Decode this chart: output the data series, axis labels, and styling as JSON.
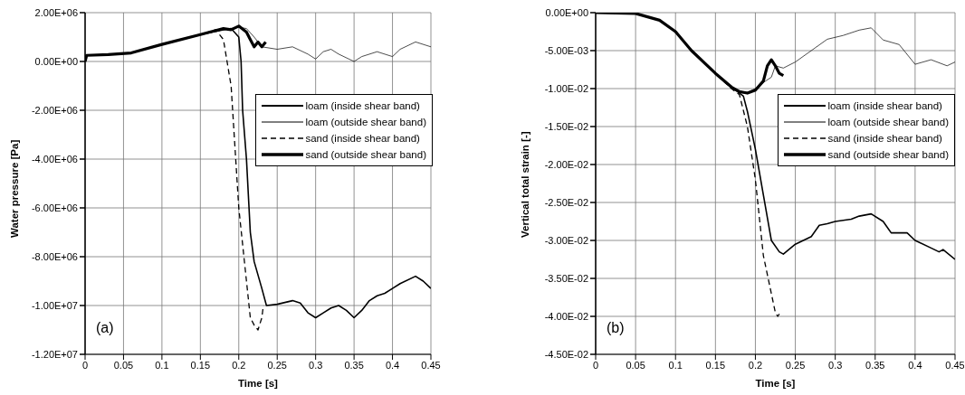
{
  "chart_data": [
    {
      "type": "line",
      "xlabel": "Time  [s]",
      "ylabel": "Water pressure  [Pa]",
      "annotations": [
        "(a)"
      ],
      "xlim": [
        0,
        0.45
      ],
      "xticks": [
        0,
        0.05,
        0.1,
        0.15,
        0.2,
        0.25,
        0.3,
        0.35,
        0.4,
        0.45
      ],
      "ylim": [
        -12000000,
        2000000
      ],
      "yticks": [
        {
          "value": -12000000,
          "label": "-1.20E+07"
        },
        {
          "value": -10000000,
          "label": "-1.00E+07"
        },
        {
          "value": -8000000,
          "label": "-8.00E+06"
        },
        {
          "value": -6000000,
          "label": "-6.00E+06"
        },
        {
          "value": -4000000,
          "label": "-4.00E+06"
        },
        {
          "value": -2000000,
          "label": "-2.00E+06"
        },
        {
          "value": 0,
          "label": "0.00E+00"
        },
        {
          "value": 2000000,
          "label": "2.00E+06"
        }
      ],
      "grid": true,
      "legend": "right",
      "marker": "none",
      "series": [
        {
          "name": "loam (inside shear band)",
          "color": "#000000",
          "line_style": "solid",
          "x": [
            0,
            0.002,
            0.03,
            0.06,
            0.1,
            0.15,
            0.18,
            0.19,
            0.2,
            0.203,
            0.205,
            0.21,
            0.215,
            0.22,
            0.23,
            0.236,
            0.25,
            0.27,
            0.28,
            0.29,
            0.3,
            0.31,
            0.32,
            0.33,
            0.34,
            0.35,
            0.36,
            0.37,
            0.38,
            0.39,
            0.4,
            0.41,
            0.43,
            0.44,
            0.45
          ],
          "values": [
            0,
            250000,
            280000,
            350000,
            700000,
            1100000,
            1300000,
            1350000,
            1000000,
            0,
            -2000000,
            -4000000,
            -7000000,
            -8200000,
            -9300000,
            -10000000,
            -9950000,
            -9800000,
            -9900000,
            -10300000,
            -10500000,
            -10300000,
            -10100000,
            -10000000,
            -10200000,
            -10500000,
            -10200000,
            -9800000,
            -9600000,
            -9500000,
            -9300000,
            -9100000,
            -8800000,
            -9000000,
            -9300000
          ]
        },
        {
          "name": "loam (outside shear band)",
          "color": "#000000",
          "line_style": "solid",
          "x": [
            0,
            0.002,
            0.03,
            0.06,
            0.1,
            0.15,
            0.18,
            0.2,
            0.21,
            0.22,
            0.23,
            0.25,
            0.27,
            0.29,
            0.3,
            0.31,
            0.32,
            0.33,
            0.35,
            0.36,
            0.38,
            0.4,
            0.41,
            0.43,
            0.45
          ],
          "values": [
            0,
            250000,
            280000,
            350000,
            700000,
            1100000,
            1300000,
            1400000,
            1350000,
            1000000,
            600000,
            500000,
            600000,
            300000,
            100000,
            400000,
            500000,
            300000,
            0,
            200000,
            400000,
            200000,
            500000,
            800000,
            600000
          ]
        },
        {
          "name": "sand (inside shear band)",
          "color": "#000000",
          "line_style": "dashed",
          "x": [
            0,
            0.002,
            0.03,
            0.06,
            0.1,
            0.15,
            0.17,
            0.18,
            0.19,
            0.2,
            0.21,
            0.215,
            0.22,
            0.225,
            0.23,
            0.232
          ],
          "values": [
            0,
            250000,
            280000,
            350000,
            700000,
            1100000,
            1300000,
            900000,
            -1000000,
            -6000000,
            -9000000,
            -10500000,
            -10800000,
            -11000000,
            -10500000,
            -10000000
          ]
        },
        {
          "name": "sand (outside shear band)",
          "color": "#000000",
          "line_style": "solid",
          "x": [
            0,
            0.002,
            0.03,
            0.06,
            0.1,
            0.15,
            0.18,
            0.19,
            0.2,
            0.21,
            0.215,
            0.22,
            0.225,
            0.23,
            0.235
          ],
          "values": [
            0,
            250000,
            280000,
            350000,
            700000,
            1100000,
            1350000,
            1300000,
            1450000,
            1200000,
            900000,
            600000,
            800000,
            600000,
            800000
          ]
        }
      ]
    },
    {
      "type": "line",
      "xlabel": "Time  [s]",
      "ylabel": "Vertical total strain  [-]",
      "annotations": [
        "(b)"
      ],
      "xlim": [
        0,
        0.45
      ],
      "xticks": [
        0,
        0.05,
        0.1,
        0.15,
        0.2,
        0.25,
        0.3,
        0.35,
        0.4,
        0.45
      ],
      "ylim": [
        -0.045,
        0
      ],
      "yticks": [
        {
          "value": -0.045,
          "label": "-4.50E-02"
        },
        {
          "value": -0.04,
          "label": "-4.00E-02"
        },
        {
          "value": -0.035,
          "label": "-3.50E-02"
        },
        {
          "value": -0.03,
          "label": "-3.00E-02"
        },
        {
          "value": -0.025,
          "label": "-2.50E-02"
        },
        {
          "value": -0.02,
          "label": "-2.00E-02"
        },
        {
          "value": -0.015,
          "label": "-1.50E-02"
        },
        {
          "value": -0.01,
          "label": "-1.00E-02"
        },
        {
          "value": -0.005,
          "label": "-5.00E-03"
        },
        {
          "value": 0,
          "label": "0.00E+00"
        }
      ],
      "grid": true,
      "legend": "right",
      "marker": "none",
      "series": [
        {
          "name": "loam (inside shear band)",
          "color": "#000000",
          "line_style": "solid",
          "x": [
            0,
            0.05,
            0.08,
            0.1,
            0.12,
            0.15,
            0.17,
            0.175,
            0.185,
            0.19,
            0.2,
            0.21,
            0.22,
            0.23,
            0.235,
            0.25,
            0.27,
            0.28,
            0.29,
            0.3,
            0.32,
            0.33,
            0.345,
            0.36,
            0.37,
            0.39,
            0.4,
            0.42,
            0.43,
            0.435,
            0.45
          ],
          "values": [
            0,
            -0.0001,
            -0.001,
            -0.0025,
            -0.005,
            -0.008,
            -0.0098,
            -0.0102,
            -0.011,
            -0.013,
            -0.018,
            -0.024,
            -0.03,
            -0.0315,
            -0.0318,
            -0.0305,
            -0.0295,
            -0.028,
            -0.0278,
            -0.0275,
            -0.0272,
            -0.0268,
            -0.0265,
            -0.0275,
            -0.029,
            -0.029,
            -0.03,
            -0.031,
            -0.0315,
            -0.0312,
            -0.0325
          ]
        },
        {
          "name": "loam (outside shear band)",
          "color": "#000000",
          "line_style": "solid",
          "x": [
            0,
            0.05,
            0.08,
            0.1,
            0.12,
            0.15,
            0.17,
            0.18,
            0.19,
            0.2,
            0.21,
            0.22,
            0.225,
            0.235,
            0.25,
            0.27,
            0.29,
            0.31,
            0.33,
            0.345,
            0.36,
            0.38,
            0.4,
            0.42,
            0.44,
            0.45
          ],
          "values": [
            0,
            -0.0001,
            -0.001,
            -0.0025,
            -0.005,
            -0.008,
            -0.0098,
            -0.0104,
            -0.0105,
            -0.01,
            -0.0092,
            -0.0085,
            -0.007,
            -0.0073,
            -0.0065,
            -0.005,
            -0.0035,
            -0.003,
            -0.0023,
            -0.002,
            -0.0036,
            -0.0042,
            -0.0068,
            -0.0062,
            -0.007,
            -0.0065
          ]
        },
        {
          "name": "sand (inside shear band)",
          "color": "#000000",
          "line_style": "dashed",
          "x": [
            0,
            0.05,
            0.08,
            0.1,
            0.12,
            0.15,
            0.17,
            0.18,
            0.19,
            0.2,
            0.21,
            0.22,
            0.225,
            0.228,
            0.23
          ],
          "values": [
            0,
            -0.0001,
            -0.001,
            -0.0025,
            -0.005,
            -0.008,
            -0.01,
            -0.0108,
            -0.015,
            -0.022,
            -0.032,
            -0.037,
            -0.0395,
            -0.04,
            -0.0397
          ]
        },
        {
          "name": "sand (outside shear band)",
          "color": "#000000",
          "line_style": "solid",
          "x": [
            0,
            0.05,
            0.08,
            0.1,
            0.12,
            0.15,
            0.17,
            0.18,
            0.19,
            0.2,
            0.21,
            0.215,
            0.22,
            0.225,
            0.23,
            0.235
          ],
          "values": [
            0,
            -0.0001,
            -0.001,
            -0.0025,
            -0.005,
            -0.008,
            -0.0098,
            -0.0104,
            -0.0106,
            -0.0102,
            -0.009,
            -0.007,
            -0.0062,
            -0.007,
            -0.008,
            -0.0083
          ]
        }
      ]
    }
  ]
}
